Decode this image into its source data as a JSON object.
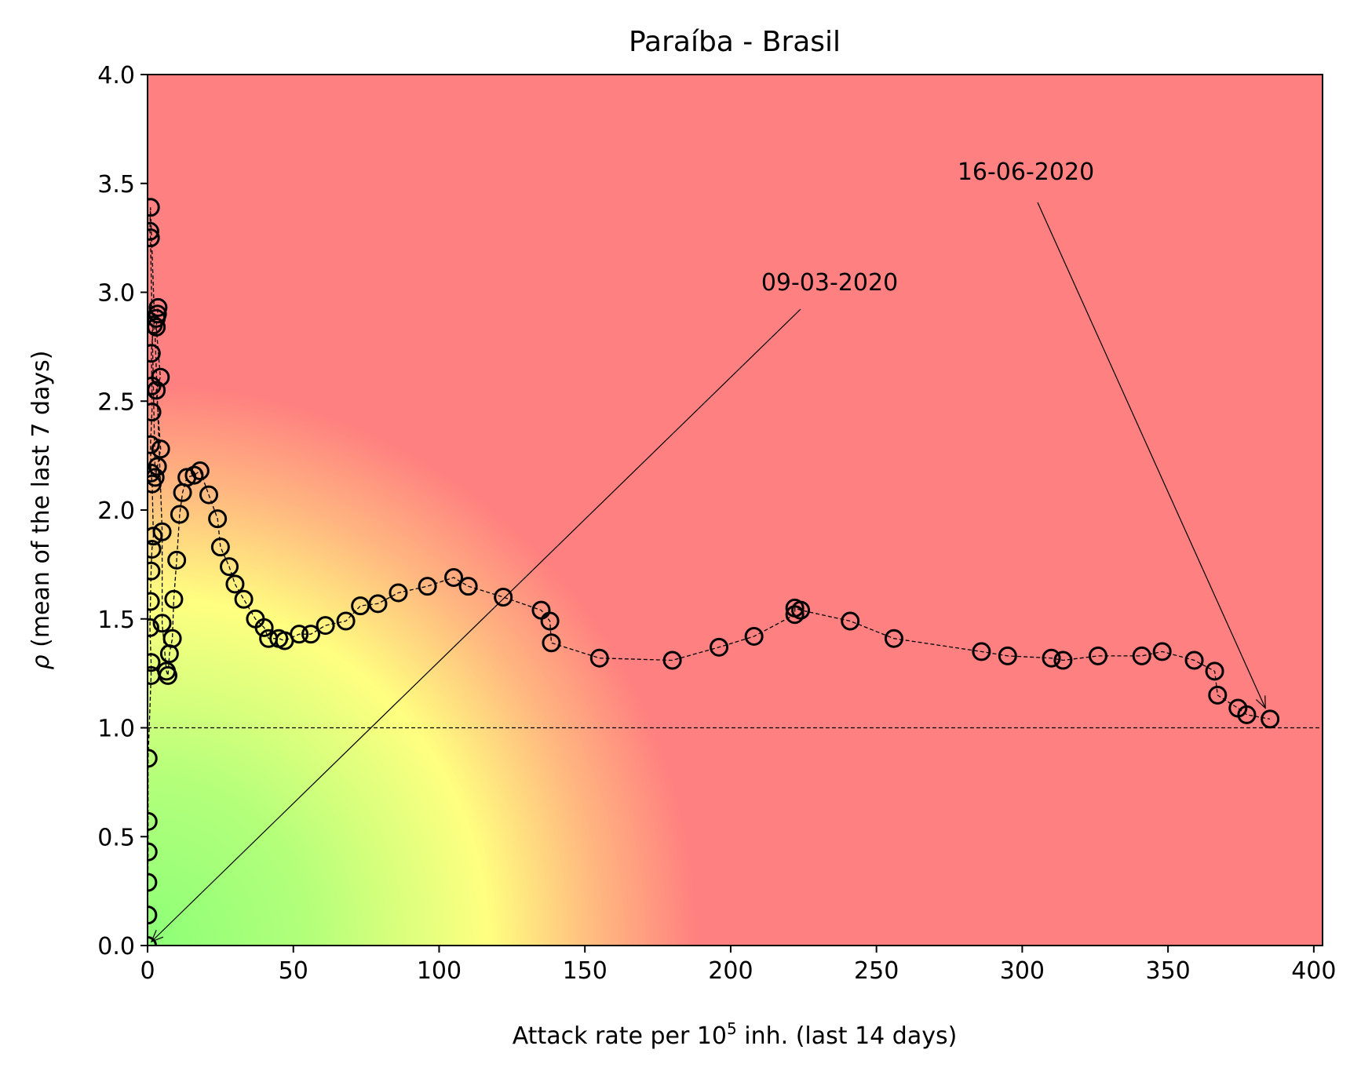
{
  "chart_data": {
    "type": "scatter",
    "title": "Paraíba - Brasil",
    "xlabel": {
      "prefix": "Attack rate per 10",
      "sup": "5",
      "suffix": " inh. (last 14 days)"
    },
    "ylabel": {
      "symbol": "ρ",
      "rest": " (mean of the last 7 days)"
    },
    "xlim": [
      0,
      403
    ],
    "ylim": [
      0,
      4.0
    ],
    "xticks": [
      0,
      50,
      100,
      150,
      200,
      250,
      300,
      350,
      400
    ],
    "yticks": [
      "0.0",
      "0.5",
      "1.0",
      "1.5",
      "2.0",
      "2.5",
      "3.0",
      "3.5",
      "4.0"
    ],
    "reference_line_y": 1.0,
    "grid": false,
    "background": {
      "description": "risk colour map",
      "colors": {
        "low": "#8cff78",
        "mid": "#ffff80",
        "high": "#ff8080"
      }
    },
    "marker_color": "#000000",
    "series": [
      {
        "points": [
          [
            0.0,
            0.0
          ],
          [
            0.1,
            0.14
          ],
          [
            0.1,
            0.29
          ],
          [
            0.2,
            0.43
          ],
          [
            0.2,
            0.57
          ],
          [
            0.2,
            0.86
          ],
          [
            1.2,
            1.24
          ],
          [
            1.2,
            1.3
          ],
          [
            0.8,
            1.46
          ],
          [
            1.0,
            1.58
          ],
          [
            1.2,
            1.72
          ],
          [
            1.5,
            1.82
          ],
          [
            2.0,
            1.88
          ],
          [
            1.6,
            2.12
          ],
          [
            1.2,
            2.17
          ],
          [
            1.0,
            2.3
          ],
          [
            1.5,
            2.45
          ],
          [
            1.5,
            2.57
          ],
          [
            1.3,
            2.72
          ],
          [
            2.0,
            2.85
          ],
          [
            3.0,
            2.88
          ],
          [
            3.4,
            2.9
          ],
          [
            3.6,
            2.93
          ],
          [
            3.0,
            2.84
          ],
          [
            4.4,
            2.61
          ],
          [
            3.0,
            2.55
          ],
          [
            4.5,
            2.28
          ],
          [
            3.4,
            2.2
          ],
          [
            2.6,
            2.15
          ],
          [
            1.0,
            3.25
          ],
          [
            0.8,
            3.28
          ],
          [
            1.0,
            3.39
          ],
          [
            5.0,
            1.9
          ],
          [
            5.0,
            1.48
          ],
          [
            6.5,
            1.26
          ],
          [
            7.0,
            1.24
          ],
          [
            7.5,
            1.34
          ],
          [
            8.5,
            1.41
          ],
          [
            9.0,
            1.59
          ],
          [
            10.0,
            1.77
          ],
          [
            11.0,
            1.98
          ],
          [
            12.0,
            2.08
          ],
          [
            13.5,
            2.15
          ],
          [
            16.0,
            2.16
          ],
          [
            18.0,
            2.18
          ],
          [
            21.0,
            2.07
          ],
          [
            24.0,
            1.96
          ],
          [
            25.0,
            1.83
          ],
          [
            28.0,
            1.74
          ],
          [
            30.0,
            1.66
          ],
          [
            33.0,
            1.59
          ],
          [
            37.0,
            1.5
          ],
          [
            40.0,
            1.46
          ],
          [
            41.5,
            1.41
          ],
          [
            45.0,
            1.41
          ],
          [
            47.0,
            1.4
          ],
          [
            52.0,
            1.43
          ],
          [
            56.0,
            1.43
          ],
          [
            61.0,
            1.47
          ],
          [
            68.0,
            1.49
          ],
          [
            73.0,
            1.56
          ],
          [
            79.0,
            1.57
          ],
          [
            86.0,
            1.62
          ],
          [
            96.0,
            1.65
          ],
          [
            105.0,
            1.69
          ],
          [
            110.0,
            1.65
          ],
          [
            122.0,
            1.6
          ],
          [
            135.0,
            1.54
          ],
          [
            138.0,
            1.49
          ],
          [
            138.5,
            1.39
          ],
          [
            155.0,
            1.32
          ],
          [
            180.0,
            1.31
          ],
          [
            196.0,
            1.37
          ],
          [
            208.0,
            1.42
          ],
          [
            222.0,
            1.52
          ],
          [
            222.0,
            1.55
          ],
          [
            224.0,
            1.54
          ],
          [
            241.0,
            1.49
          ],
          [
            256.0,
            1.41
          ],
          [
            286.0,
            1.35
          ],
          [
            295.0,
            1.33
          ],
          [
            310.0,
            1.32
          ],
          [
            314.0,
            1.31
          ],
          [
            326.0,
            1.33
          ],
          [
            341.0,
            1.33
          ],
          [
            348.0,
            1.35
          ],
          [
            359.0,
            1.31
          ],
          [
            366.0,
            1.26
          ],
          [
            367.0,
            1.15
          ],
          [
            374.0,
            1.09
          ],
          [
            377.0,
            1.06
          ],
          [
            385.0,
            1.04
          ]
        ]
      }
    ],
    "annotations": [
      {
        "text": "09-03-2020",
        "points_to": [
          0.0,
          0.0
        ]
      },
      {
        "text": "16-06-2020",
        "points_to": [
          385.0,
          1.04
        ]
      }
    ]
  }
}
